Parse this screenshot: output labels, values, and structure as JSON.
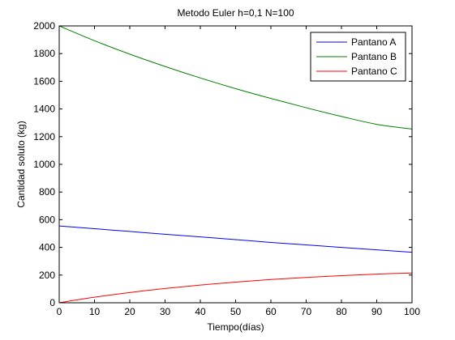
{
  "chart_data": {
    "type": "line",
    "title": "Metodo Euler h=0,1 N=100",
    "xlabel": "Tiempo(días)",
    "ylabel": "Cantidad soluto (kg)",
    "xlim": [
      0,
      100
    ],
    "ylim": [
      0,
      2000
    ],
    "xticks": [
      "0",
      "10",
      "20",
      "30",
      "40",
      "50",
      "60",
      "70",
      "80",
      "90",
      "100"
    ],
    "yticks": [
      "0",
      "200",
      "400",
      "600",
      "800",
      "1000",
      "1200",
      "1400",
      "1600",
      "1800",
      "2000"
    ],
    "grid": false,
    "legend_position": "top-right",
    "x": [
      0,
      10,
      20,
      30,
      40,
      50,
      60,
      70,
      80,
      90,
      100
    ],
    "series": [
      {
        "name": "Pantano A",
        "color": "#0000ff",
        "values": [
          555,
          535,
          515,
          495,
          476,
          456,
          436,
          418,
          400,
          382,
          365
        ]
      },
      {
        "name": "Pantano B",
        "color": "#008000",
        "values": [
          2000,
          1893,
          1796,
          1707,
          1624,
          1547,
          1476,
          1409,
          1346,
          1289,
          1255
        ]
      },
      {
        "name": "Pantano C",
        "color": "#ff0000",
        "values": [
          0,
          40,
          74,
          103,
          128,
          149,
          168,
          183,
          196,
          207,
          215
        ]
      }
    ]
  }
}
